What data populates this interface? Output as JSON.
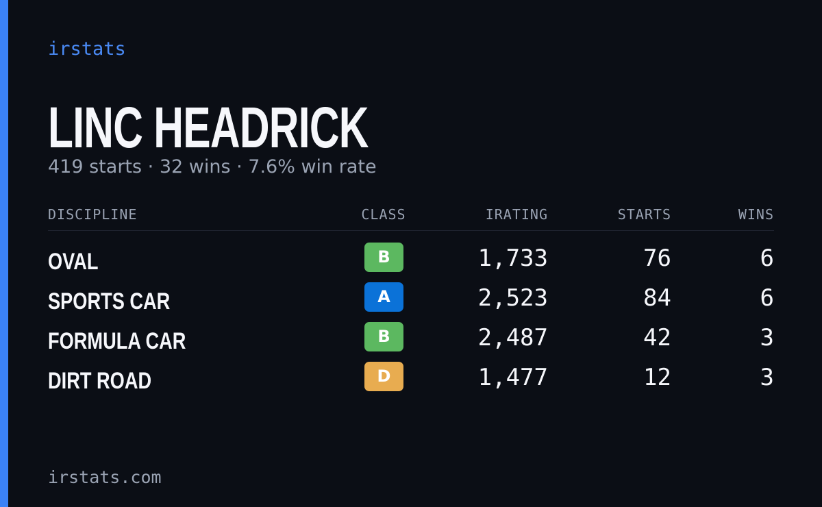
{
  "brand": "irstats",
  "driver": {
    "name": "LINC HEADRICK",
    "summary": "419 starts · 32 wins · 7.6% win rate"
  },
  "table": {
    "headers": [
      "DISCIPLINE",
      "CLASS",
      "IRATING",
      "STARTS",
      "WINS"
    ],
    "rows": [
      [
        "OVAL",
        "B",
        "1,733",
        "76",
        "6"
      ],
      [
        "SPORTS CAR",
        "A",
        "2,523",
        "84",
        "6"
      ],
      [
        "FORMULA CAR",
        "B",
        "2,487",
        "42",
        "3"
      ],
      [
        "DIRT ROAD",
        "D",
        "1,477",
        "12",
        "3"
      ]
    ]
  },
  "class_colors": {
    "A": "#0b72d8",
    "B": "#5cb860",
    "D": "#e8ac50"
  },
  "footer": "irstats.com"
}
